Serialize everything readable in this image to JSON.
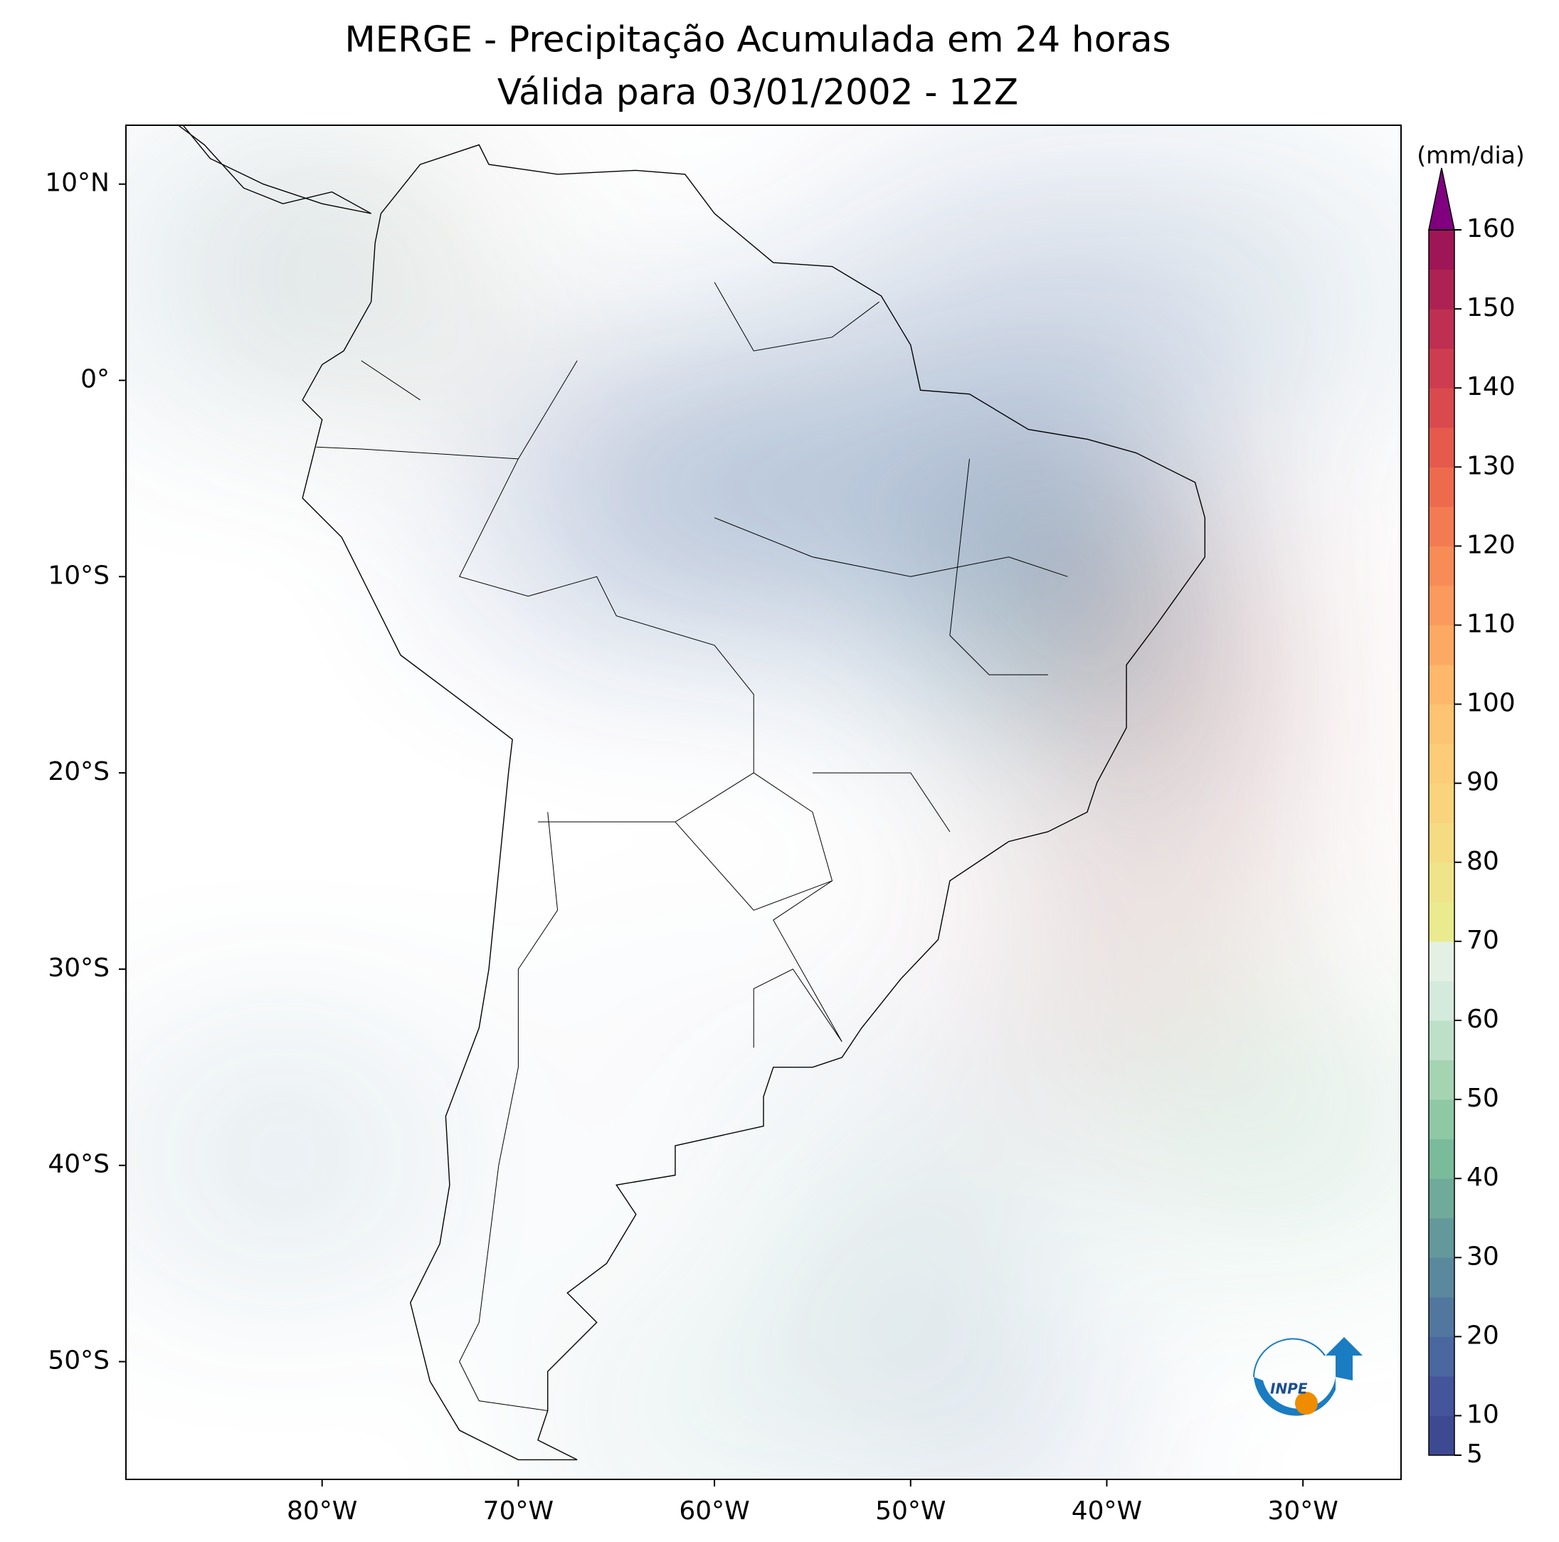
{
  "chart_data": {
    "type": "map",
    "title": "MERGE - Precipitação Acumulada em 24 horas",
    "subtitle": "Válida para 03/01/2002 - 12Z",
    "xlim": [
      -90,
      -25
    ],
    "ylim": [
      -56,
      13
    ],
    "xticks": [
      {
        "value": -80,
        "label": "80°W"
      },
      {
        "value": -70,
        "label": "70°W"
      },
      {
        "value": -60,
        "label": "60°W"
      },
      {
        "value": -50,
        "label": "50°W"
      },
      {
        "value": -40,
        "label": "40°W"
      },
      {
        "value": -30,
        "label": "30°W"
      }
    ],
    "yticks": [
      {
        "value": 10,
        "label": "10°N"
      },
      {
        "value": 0,
        "label": "0°"
      },
      {
        "value": -10,
        "label": "10°S"
      },
      {
        "value": -20,
        "label": "20°S"
      },
      {
        "value": -30,
        "label": "30°S"
      },
      {
        "value": -40,
        "label": "40°S"
      },
      {
        "value": -50,
        "label": "50°S"
      }
    ],
    "colorbar": {
      "label": "(mm/dia)",
      "lim": [
        5,
        160
      ],
      "ticks": [
        5,
        10,
        20,
        30,
        40,
        50,
        60,
        70,
        80,
        90,
        100,
        110,
        120,
        130,
        140,
        150,
        160
      ],
      "colors": [
        "#3d4a92",
        "#44559b",
        "#4a67a0",
        "#51779f",
        "#5a889d",
        "#64999b",
        "#6faa9a",
        "#79bb9b",
        "#8ec8a4",
        "#a5d4b3",
        "#bde0c8",
        "#d4eadc",
        "#e4f0e4",
        "#eaeb8e",
        "#f0e48a",
        "#f5dc83",
        "#f9d47c",
        "#fccd76",
        "#fdc471",
        "#fdb86a",
        "#fcaa63",
        "#fa9b5d",
        "#f78c57",
        "#f37b52",
        "#ee6a4d",
        "#e55a4c",
        "#da4a4d",
        "#cd3c4f",
        "#be2f51",
        "#ae2253",
        "#9e1655"
      ],
      "extend_color": "#800080"
    },
    "logo_text": "INPE"
  }
}
